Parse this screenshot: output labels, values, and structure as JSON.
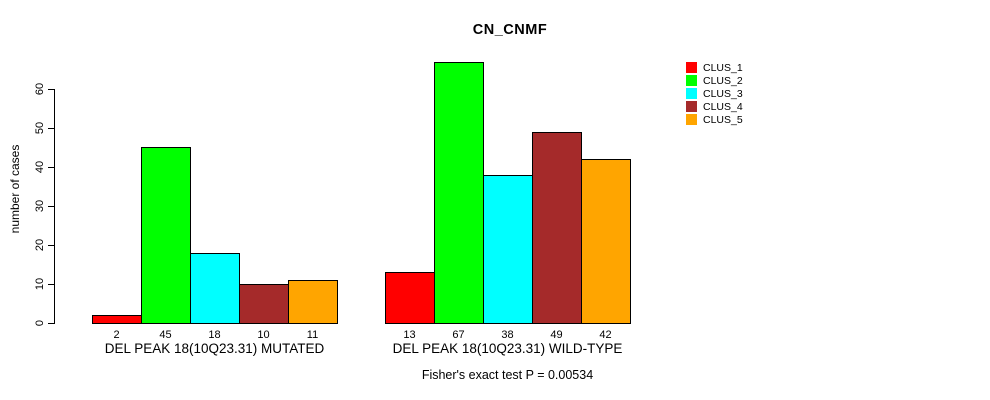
{
  "chart_data": {
    "type": "bar",
    "title": "CN_CNMF",
    "ylabel": "number of cases",
    "xlabel": "",
    "annotation": "Fisher's exact test P = 0.00534",
    "ylim": [
      0,
      67
    ],
    "yticks": [
      0,
      10,
      20,
      30,
      40,
      50,
      60
    ],
    "grid": false,
    "legend_position": "top-right",
    "bar_border_color": "#000000",
    "background_color": "#ffffff",
    "categories": [
      "DEL PEAK 18(10Q23.31) MUTATED",
      "DEL PEAK 18(10Q23.31) WILD-TYPE"
    ],
    "series": [
      {
        "name": "CLUS_1",
        "color": "#FF0000",
        "values": [
          2,
          13
        ]
      },
      {
        "name": "CLUS_2",
        "color": "#00FF00",
        "values": [
          45,
          67
        ]
      },
      {
        "name": "CLUS_3",
        "color": "#00FFFF",
        "values": [
          18,
          38
        ]
      },
      {
        "name": "CLUS_4",
        "color": "#A52A2A",
        "values": [
          10,
          49
        ]
      },
      {
        "name": "CLUS_5",
        "color": "#FFA500",
        "values": [
          11,
          42
        ]
      }
    ],
    "bar_value_labels_shown": true
  }
}
